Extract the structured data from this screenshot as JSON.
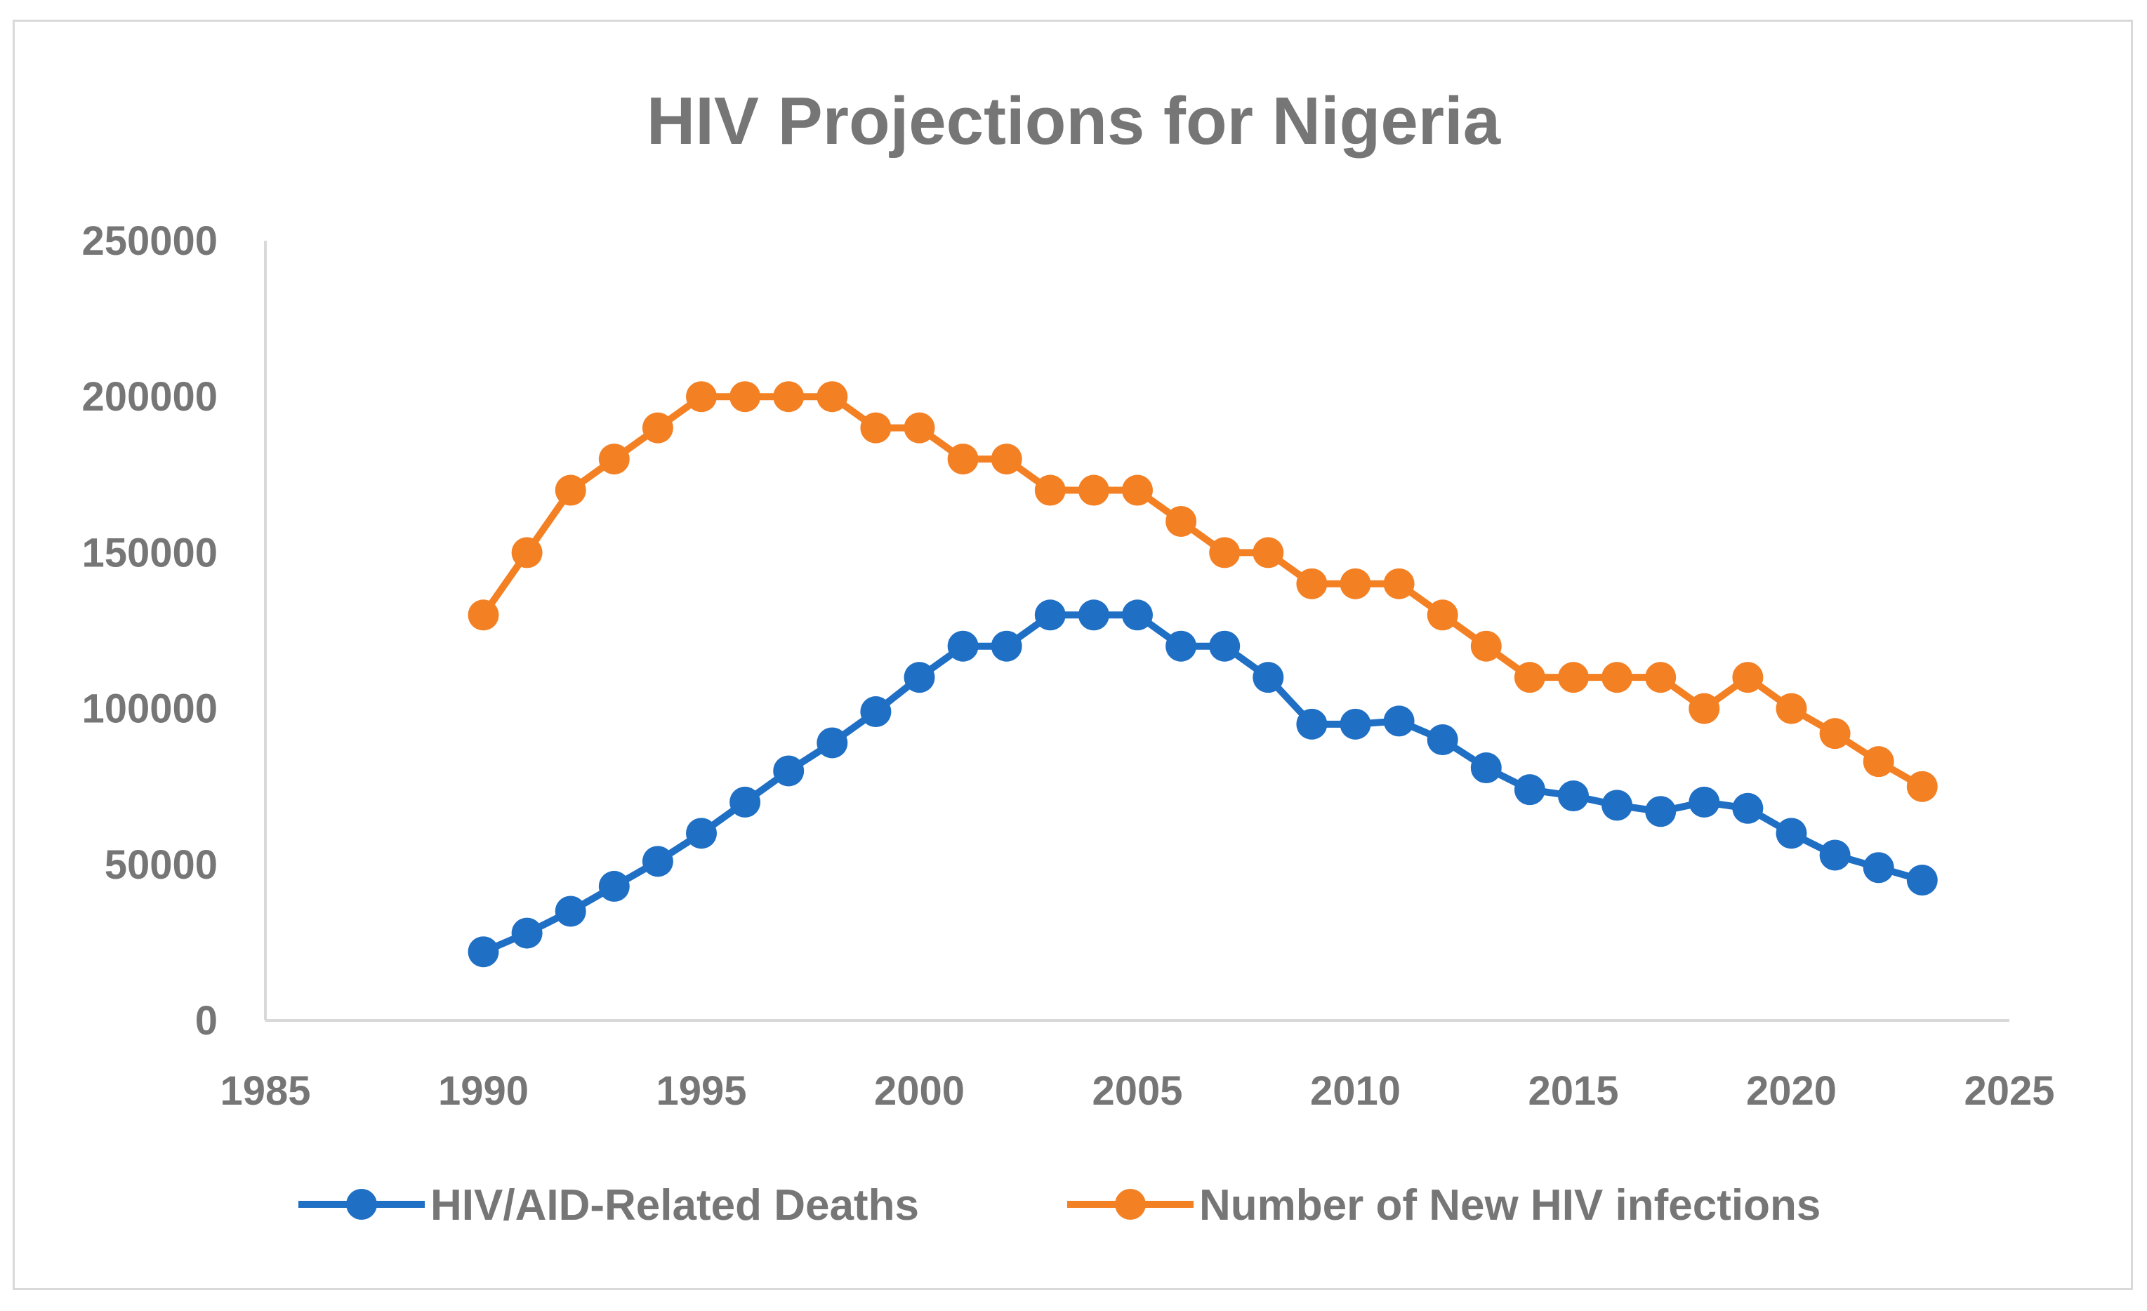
{
  "chart_data": {
    "type": "line",
    "title": "HIV Projections for Nigeria",
    "xlabel": "",
    "ylabel": "",
    "xlim": [
      1985,
      2025
    ],
    "ylim": [
      0,
      250000
    ],
    "x_ticks": [
      1985,
      1990,
      1995,
      2000,
      2005,
      2010,
      2015,
      2020,
      2025
    ],
    "y_ticks": [
      0,
      50000,
      100000,
      150000,
      200000,
      250000
    ],
    "grid": false,
    "legend_position": "bottom",
    "x": [
      1990,
      1991,
      1992,
      1993,
      1994,
      1995,
      1996,
      1997,
      1998,
      1999,
      2000,
      2001,
      2002,
      2003,
      2004,
      2005,
      2006,
      2007,
      2008,
      2009,
      2010,
      2011,
      2012,
      2013,
      2014,
      2015,
      2016,
      2017,
      2018,
      2019,
      2020,
      2021,
      2022,
      2023
    ],
    "series": [
      {
        "name": "HIV/AID-Related Deaths",
        "color": "#1f6fc5",
        "values": [
          22000,
          28000,
          35000,
          43000,
          51000,
          60000,
          70000,
          80000,
          89000,
          99000,
          110000,
          120000,
          120000,
          130000,
          130000,
          130000,
          120000,
          120000,
          110000,
          95000,
          95000,
          96000,
          90000,
          81000,
          74000,
          72000,
          69000,
          67000,
          70000,
          68000,
          60000,
          53000,
          49000,
          45000
        ]
      },
      {
        "name": "Number of New HIV infections",
        "color": "#f48024",
        "values": [
          130000,
          150000,
          170000,
          180000,
          190000,
          200000,
          200000,
          200000,
          200000,
          190000,
          190000,
          180000,
          180000,
          170000,
          170000,
          170000,
          160000,
          150000,
          150000,
          140000,
          140000,
          140000,
          130000,
          120000,
          110000,
          110000,
          110000,
          110000,
          100000,
          110000,
          100000,
          92000,
          83000,
          75000
        ]
      }
    ]
  }
}
